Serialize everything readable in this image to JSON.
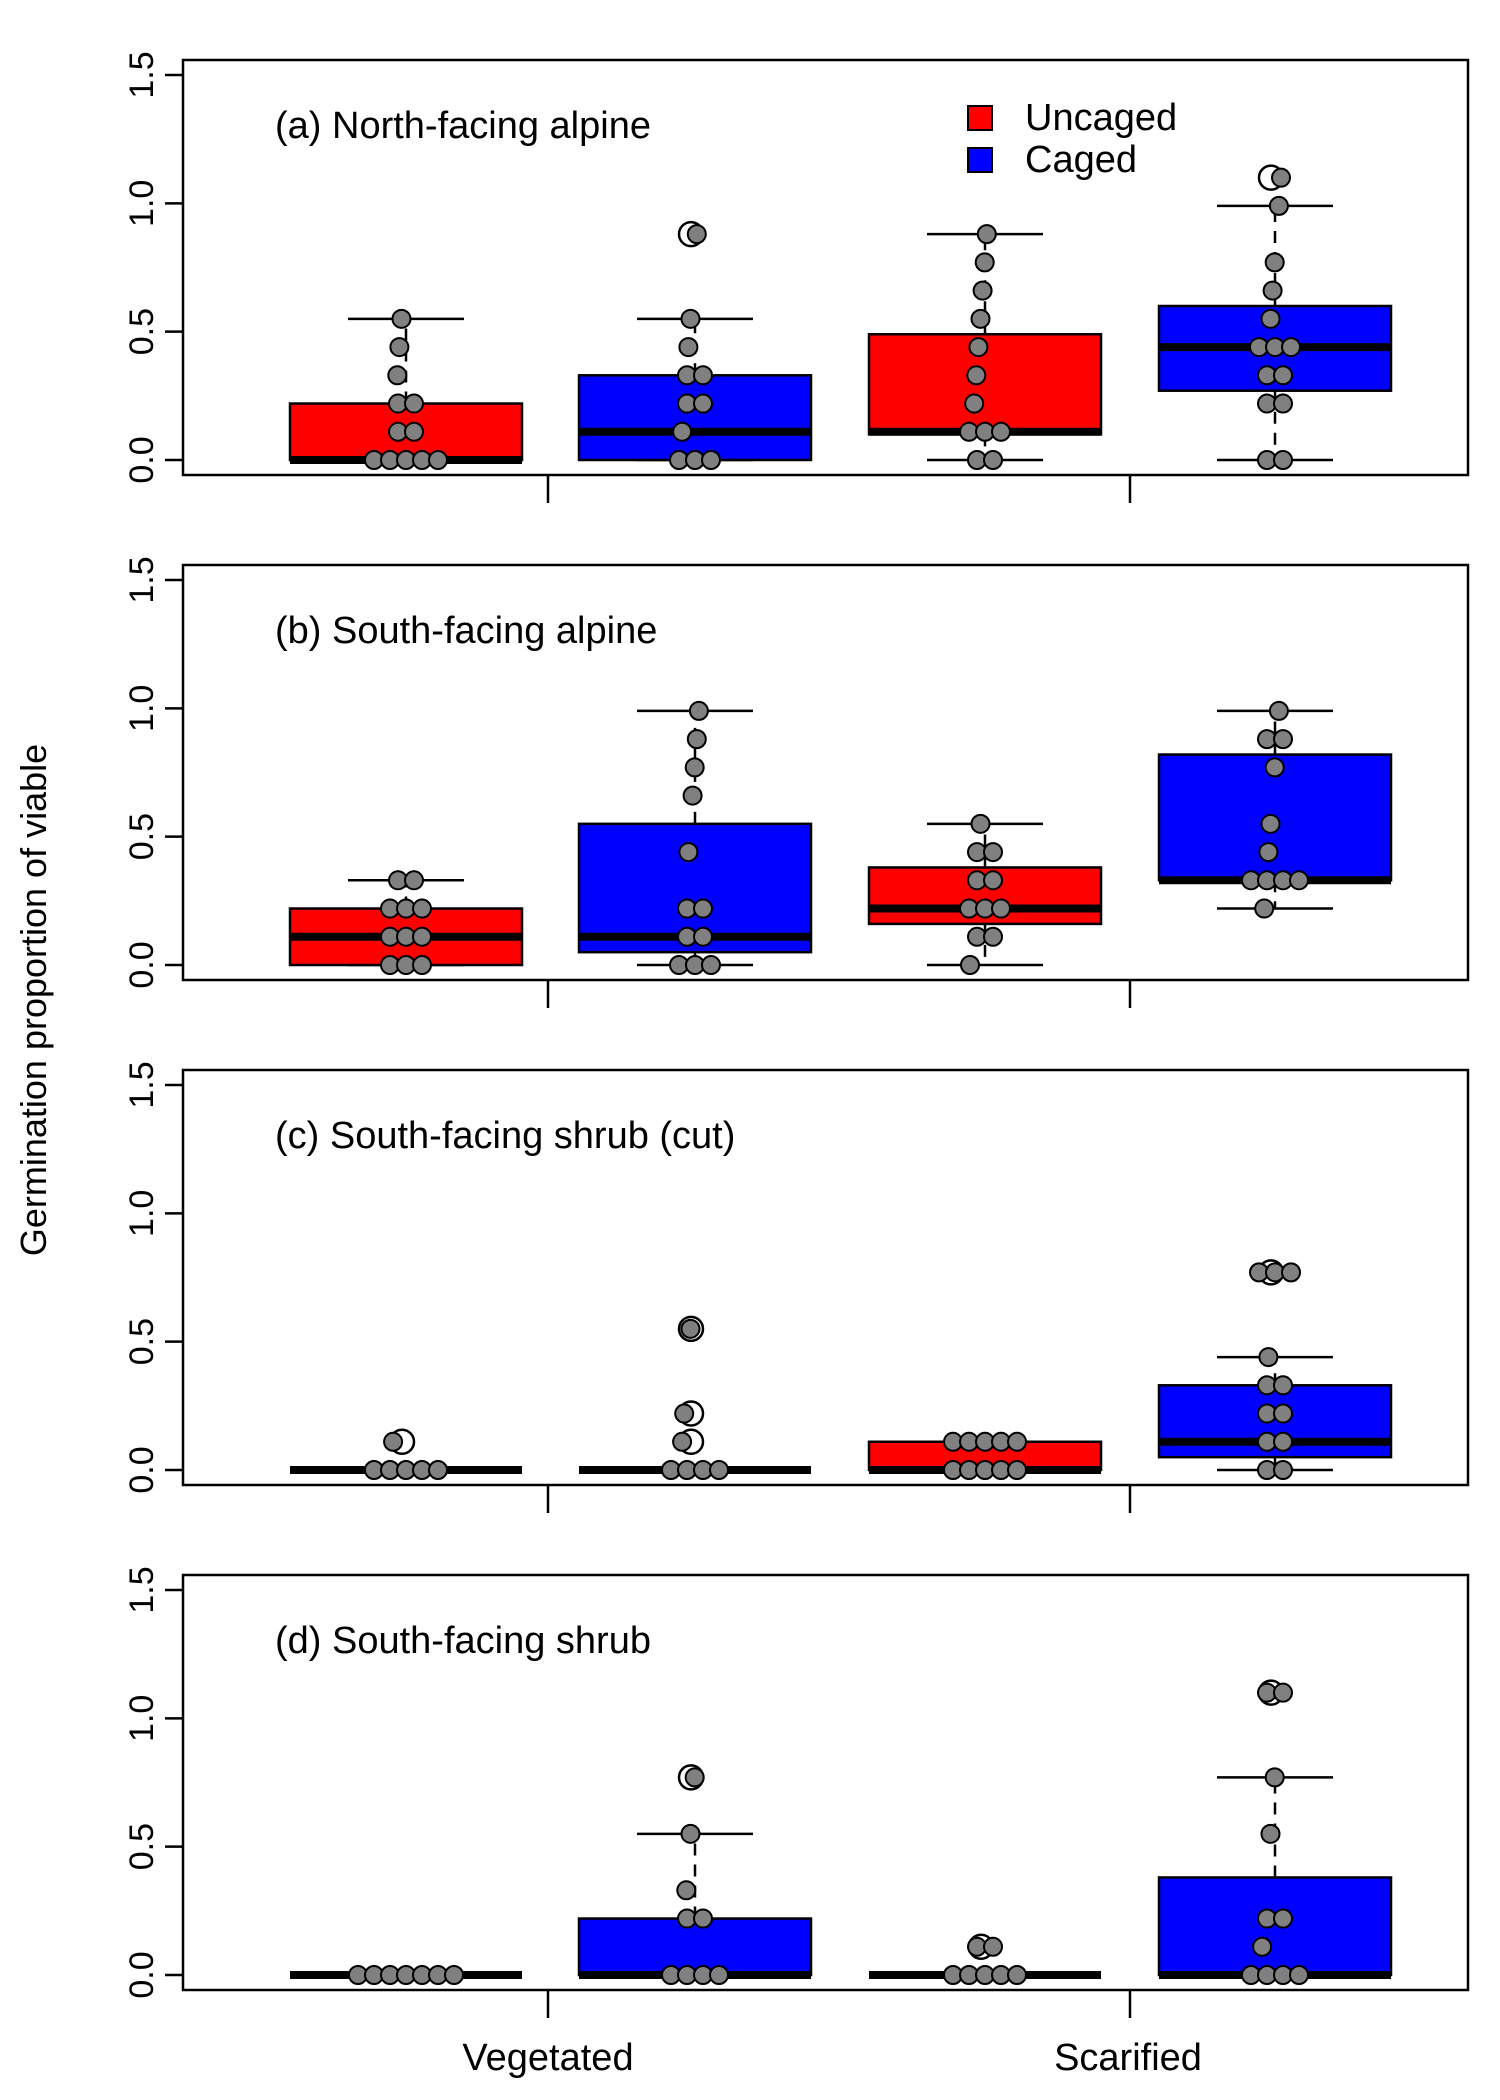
{
  "y_axis_label": "Germination proportion of viable",
  "x_labels": [
    "Vegetated",
    "Scarified"
  ],
  "legend": [
    {
      "label": "Uncaged",
      "color": "#ff0000"
    },
    {
      "label": "Caged",
      "color": "#0000ff"
    }
  ],
  "colors": {
    "uncaged": "#ff0000",
    "caged": "#0000ff",
    "point_fill": "#808080",
    "outlier_fill": "#ffffff"
  },
  "chart_data": [
    {
      "type": "box",
      "title": "(a) North-facing alpine",
      "ylim": [
        0,
        1.5
      ],
      "yticks": [
        "0.0",
        "0.5",
        "1.0",
        "1.5"
      ],
      "boxes": [
        {
          "group": "Vegetated",
          "treatment": "Uncaged",
          "whisker_low": 0,
          "q1": 0,
          "median": 0,
          "q3": 0.22,
          "whisker_high": 0.55,
          "points": [
            0.55,
            0.44,
            0.33,
            0.22,
            0.22,
            0.11,
            0.11,
            0,
            0,
            0,
            0,
            0
          ],
          "outliers": []
        },
        {
          "group": "Vegetated",
          "treatment": "Caged",
          "whisker_low": 0,
          "q1": 0,
          "median": 0.11,
          "q3": 0.33,
          "whisker_high": 0.55,
          "points": [
            0.88,
            0.55,
            0.44,
            0.33,
            0.33,
            0.22,
            0.22,
            0.11,
            0,
            0,
            0
          ],
          "outliers": [
            0.88
          ]
        },
        {
          "group": "Scarified",
          "treatment": "Uncaged",
          "whisker_low": 0,
          "q1": 0.1,
          "median": 0.11,
          "q3": 0.49,
          "whisker_high": 0.88,
          "points": [
            0.88,
            0.77,
            0.66,
            0.55,
            0.44,
            0.33,
            0.22,
            0.11,
            0.11,
            0.11,
            0,
            0
          ],
          "outliers": []
        },
        {
          "group": "Scarified",
          "treatment": "Caged",
          "whisker_low": 0,
          "q1": 0.27,
          "median": 0.44,
          "q3": 0.6,
          "whisker_high": 0.99,
          "points": [
            1.1,
            0.99,
            0.77,
            0.66,
            0.55,
            0.44,
            0.44,
            0.44,
            0.33,
            0.33,
            0.22,
            0.22,
            0,
            0
          ],
          "outliers": [
            1.1
          ]
        }
      ]
    },
    {
      "type": "box",
      "title": "(b) South-facing alpine",
      "ylim": [
        0,
        1.5
      ],
      "yticks": [
        "0.0",
        "0.5",
        "1.0",
        "1.5"
      ],
      "boxes": [
        {
          "group": "Vegetated",
          "treatment": "Uncaged",
          "whisker_low": 0,
          "q1": 0,
          "median": 0.11,
          "q3": 0.22,
          "whisker_high": 0.33,
          "points": [
            0.33,
            0.33,
            0.22,
            0.22,
            0.22,
            0.11,
            0.11,
            0.11,
            0,
            0,
            0
          ],
          "outliers": []
        },
        {
          "group": "Vegetated",
          "treatment": "Caged",
          "whisker_low": 0,
          "q1": 0.05,
          "median": 0.11,
          "q3": 0.55,
          "whisker_high": 0.99,
          "points": [
            0.99,
            0.88,
            0.77,
            0.66,
            0.44,
            0.22,
            0.22,
            0.11,
            0.11,
            0,
            0,
            0
          ],
          "outliers": []
        },
        {
          "group": "Scarified",
          "treatment": "Uncaged",
          "whisker_low": 0,
          "q1": 0.16,
          "median": 0.22,
          "q3": 0.38,
          "whisker_high": 0.55,
          "points": [
            0.55,
            0.44,
            0.44,
            0.33,
            0.33,
            0.22,
            0.22,
            0.22,
            0.11,
            0.11,
            0
          ],
          "outliers": []
        },
        {
          "group": "Scarified",
          "treatment": "Caged",
          "whisker_low": 0.22,
          "q1": 0.33,
          "median": 0.33,
          "q3": 0.82,
          "whisker_high": 0.99,
          "points": [
            0.99,
            0.88,
            0.88,
            0.77,
            0.55,
            0.44,
            0.33,
            0.33,
            0.33,
            0.33,
            0.22
          ],
          "outliers": []
        }
      ]
    },
    {
      "type": "box",
      "title": "(c) South-facing shrub (cut)",
      "ylim": [
        0,
        1.5
      ],
      "yticks": [
        "0.0",
        "0.5",
        "1.0",
        "1.5"
      ],
      "boxes": [
        {
          "group": "Vegetated",
          "treatment": "Uncaged",
          "whisker_low": 0,
          "q1": 0,
          "median": 0,
          "q3": 0,
          "whisker_high": 0,
          "points": [
            0.11,
            0,
            0,
            0,
            0,
            0
          ],
          "outliers": [
            0.11
          ]
        },
        {
          "group": "Vegetated",
          "treatment": "Caged",
          "whisker_low": 0,
          "q1": 0,
          "median": 0,
          "q3": 0,
          "whisker_high": 0,
          "points": [
            0.55,
            0.22,
            0.11,
            0,
            0,
            0,
            0
          ],
          "outliers": [
            0.55,
            0.22,
            0.11
          ]
        },
        {
          "group": "Scarified",
          "treatment": "Uncaged",
          "whisker_low": 0,
          "q1": 0,
          "median": 0,
          "q3": 0.11,
          "whisker_high": 0.11,
          "points": [
            0.11,
            0.11,
            0.11,
            0.11,
            0.11,
            0,
            0,
            0,
            0,
            0
          ],
          "outliers": []
        },
        {
          "group": "Scarified",
          "treatment": "Caged",
          "whisker_low": 0,
          "q1": 0.05,
          "median": 0.11,
          "q3": 0.33,
          "whisker_high": 0.44,
          "points": [
            0.77,
            0.77,
            0.77,
            0.44,
            0.33,
            0.33,
            0.22,
            0.22,
            0.11,
            0.11,
            0,
            0
          ],
          "outliers": [
            0.77
          ]
        }
      ]
    },
    {
      "type": "box",
      "title": "(d) South-facing shrub",
      "ylim": [
        0,
        1.5
      ],
      "yticks": [
        "0.0",
        "0.5",
        "1.0",
        "1.5"
      ],
      "boxes": [
        {
          "group": "Vegetated",
          "treatment": "Uncaged",
          "whisker_low": 0,
          "q1": 0,
          "median": 0,
          "q3": 0,
          "whisker_high": 0,
          "points": [
            0,
            0,
            0,
            0,
            0,
            0,
            0
          ],
          "outliers": []
        },
        {
          "group": "Vegetated",
          "treatment": "Caged",
          "whisker_low": 0,
          "q1": 0,
          "median": 0,
          "q3": 0.22,
          "whisker_high": 0.55,
          "points": [
            0.77,
            0.55,
            0.33,
            0.22,
            0.22,
            0,
            0,
            0,
            0
          ],
          "outliers": [
            0.77
          ]
        },
        {
          "group": "Scarified",
          "treatment": "Uncaged",
          "whisker_low": 0,
          "q1": 0,
          "median": 0,
          "q3": 0,
          "whisker_high": 0,
          "points": [
            0.11,
            0.11,
            0,
            0,
            0,
            0,
            0
          ],
          "outliers": [
            0.11
          ]
        },
        {
          "group": "Scarified",
          "treatment": "Caged",
          "whisker_low": 0,
          "q1": 0,
          "median": 0,
          "q3": 0.38,
          "whisker_high": 0.77,
          "points": [
            1.1,
            1.1,
            0.77,
            0.55,
            0.22,
            0.22,
            0.11,
            0,
            0,
            0,
            0
          ],
          "outliers": [
            1.1
          ]
        }
      ]
    }
  ]
}
